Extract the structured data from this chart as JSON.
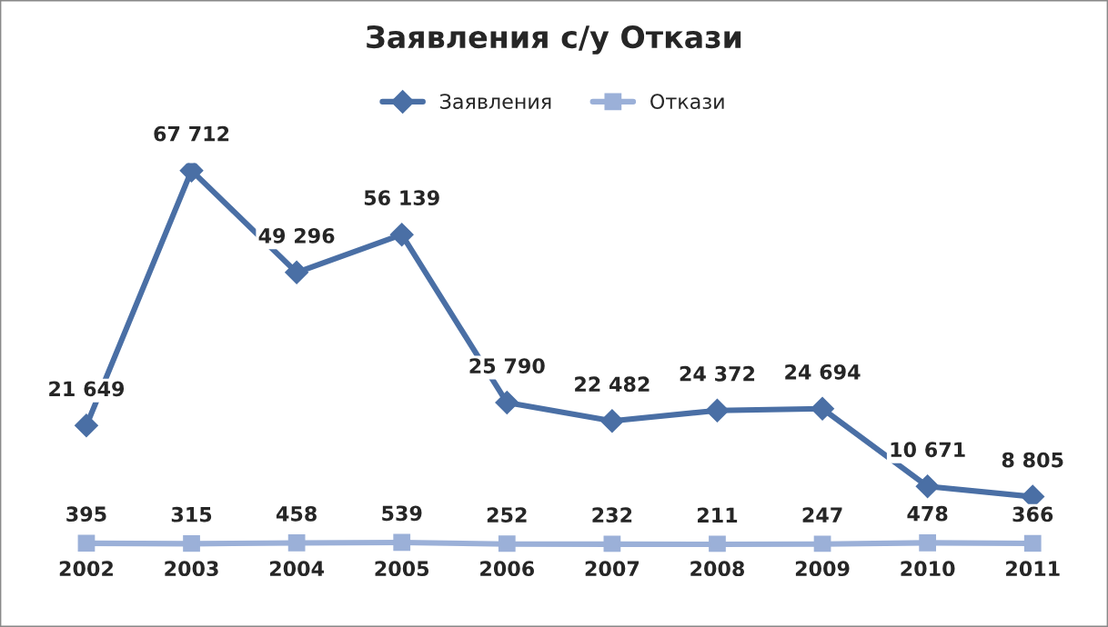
{
  "chart_data": {
    "type": "line",
    "title": "Заявления с/у Откази",
    "categories": [
      "2002",
      "2003",
      "2004",
      "2005",
      "2006",
      "2007",
      "2008",
      "2009",
      "2010",
      "2011"
    ],
    "series": [
      {
        "name": "Заявления",
        "color": "#4a6fa5",
        "marker": "diamond",
        "values": [
          21649,
          67712,
          49296,
          56139,
          25790,
          22482,
          24372,
          24694,
          10671,
          8805
        ],
        "value_labels": [
          "21 649",
          "67 712",
          "49 296",
          "56 139",
          "25 790",
          "22 482",
          "24 372",
          "24 694",
          "10 671",
          "8 805"
        ]
      },
      {
        "name": "Откази",
        "color": "#9bb0d8",
        "marker": "square",
        "values": [
          395,
          315,
          458,
          539,
          252,
          232,
          211,
          247,
          478,
          366
        ],
        "value_labels": [
          "395",
          "315",
          "458",
          "539",
          "252",
          "232",
          "211",
          "247",
          "478",
          "366"
        ]
      }
    ],
    "legend": "top",
    "grid": false,
    "tick_labels": "x"
  }
}
